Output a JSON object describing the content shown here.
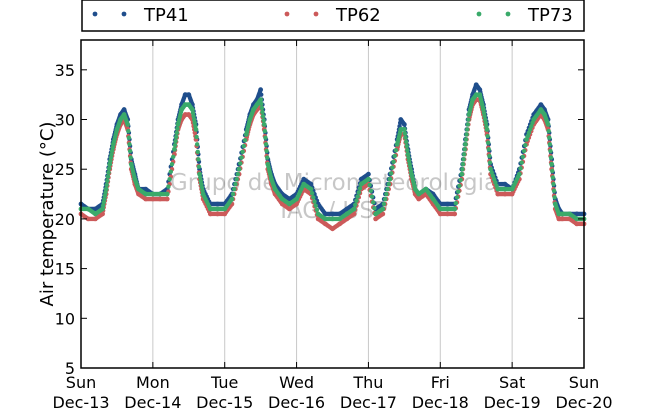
{
  "chart_data": {
    "type": "scatter",
    "title": "",
    "ylabel": "Air temperature (°C)",
    "xlabel": "",
    "ylim": [
      5,
      38
    ],
    "yticks": [
      5,
      10,
      15,
      20,
      25,
      30,
      35
    ],
    "xlim": [
      0,
      7
    ],
    "xticks": [
      {
        "day": "Sun",
        "date": "Dec-13"
      },
      {
        "day": "Mon",
        "date": "Dec-14"
      },
      {
        "day": "Tue",
        "date": "Dec-15"
      },
      {
        "day": "Wed",
        "date": "Dec-16"
      },
      {
        "day": "Thu",
        "date": "Dec-17"
      },
      {
        "day": "Fri",
        "date": "Dec-18"
      },
      {
        "day": "Sat",
        "date": "Dec-19"
      },
      {
        "day": "Sun",
        "date": "Dec-20"
      }
    ],
    "grid": "vertical",
    "legend_placement": "top",
    "watermark": [
      "Grupo de Micrometeorologia",
      "IAG / USP"
    ],
    "series": [
      {
        "name": "TP41",
        "color": "#1f4e8c",
        "x": [
          0.0,
          0.1,
          0.2,
          0.3,
          0.35,
          0.4,
          0.45,
          0.5,
          0.55,
          0.6,
          0.65,
          0.7,
          0.75,
          0.8,
          0.9,
          1.0,
          1.1,
          1.2,
          1.3,
          1.35,
          1.4,
          1.45,
          1.5,
          1.55,
          1.6,
          1.65,
          1.7,
          1.8,
          1.9,
          2.0,
          2.1,
          2.2,
          2.3,
          2.35,
          2.4,
          2.45,
          2.5,
          2.55,
          2.6,
          2.65,
          2.7,
          2.8,
          2.9,
          3.0,
          3.1,
          3.2,
          3.3,
          3.4,
          3.5,
          3.6,
          3.7,
          3.8,
          3.9,
          4.0,
          4.1,
          4.2,
          4.3,
          4.4,
          4.45,
          4.5,
          4.55,
          4.6,
          4.65,
          4.7,
          4.8,
          4.9,
          5.0,
          5.1,
          5.2,
          5.3,
          5.35,
          5.4,
          5.45,
          5.5,
          5.55,
          5.6,
          5.65,
          5.7,
          5.8,
          5.9,
          6.0,
          6.1,
          6.2,
          6.3,
          6.4,
          6.45,
          6.5,
          6.55,
          6.6,
          6.65,
          6.7,
          6.8,
          6.9,
          7.0
        ],
        "y": [
          21.5,
          21.0,
          21.0,
          21.5,
          23.5,
          26.0,
          28.0,
          29.5,
          30.5,
          31.0,
          30.0,
          26.0,
          24.5,
          23.0,
          23.0,
          22.5,
          22.5,
          23.0,
          27.5,
          30.0,
          31.5,
          32.5,
          32.5,
          31.5,
          29.5,
          25.0,
          23.0,
          21.5,
          21.5,
          21.5,
          22.5,
          25.5,
          29.0,
          30.5,
          31.5,
          32.0,
          33.0,
          30.0,
          26.0,
          24.5,
          23.5,
          22.5,
          22.0,
          22.5,
          24.0,
          23.5,
          21.5,
          20.5,
          20.5,
          20.5,
          21.0,
          21.5,
          24.0,
          24.5,
          21.0,
          21.5,
          24.5,
          28.0,
          30.0,
          29.5,
          27.0,
          25.0,
          23.0,
          22.5,
          23.0,
          22.5,
          21.5,
          21.5,
          21.5,
          25.0,
          28.0,
          31.0,
          32.5,
          33.5,
          33.0,
          31.5,
          29.5,
          25.5,
          23.5,
          23.5,
          23.0,
          25.0,
          28.5,
          30.5,
          31.5,
          31.0,
          30.0,
          26.0,
          22.0,
          21.0,
          20.5,
          20.5,
          20.5,
          20.5
        ]
      },
      {
        "name": "TP62",
        "color": "#cc5a5a",
        "x": [
          0.0,
          0.1,
          0.2,
          0.3,
          0.35,
          0.4,
          0.45,
          0.5,
          0.55,
          0.6,
          0.65,
          0.7,
          0.75,
          0.8,
          0.9,
          1.0,
          1.1,
          1.2,
          1.3,
          1.35,
          1.4,
          1.45,
          1.5,
          1.55,
          1.6,
          1.65,
          1.7,
          1.8,
          1.9,
          2.0,
          2.1,
          2.2,
          2.3,
          2.35,
          2.4,
          2.45,
          2.5,
          2.55,
          2.6,
          2.65,
          2.7,
          2.8,
          2.9,
          3.0,
          3.1,
          3.2,
          3.3,
          3.4,
          3.5,
          3.6,
          3.7,
          3.8,
          3.9,
          4.0,
          4.1,
          4.2,
          4.3,
          4.4,
          4.45,
          4.5,
          4.55,
          4.6,
          4.65,
          4.7,
          4.8,
          4.9,
          5.0,
          5.1,
          5.2,
          5.3,
          5.35,
          5.4,
          5.45,
          5.5,
          5.55,
          5.6,
          5.65,
          5.7,
          5.8,
          5.9,
          6.0,
          6.1,
          6.2,
          6.3,
          6.4,
          6.45,
          6.5,
          6.55,
          6.6,
          6.65,
          6.7,
          6.8,
          6.9,
          7.0
        ],
        "y": [
          20.5,
          20.0,
          20.0,
          20.5,
          22.5,
          25.0,
          27.0,
          28.5,
          29.5,
          30.0,
          29.0,
          25.0,
          23.5,
          22.5,
          22.0,
          22.0,
          22.0,
          22.0,
          26.5,
          29.0,
          30.0,
          30.5,
          30.5,
          30.0,
          28.0,
          24.0,
          22.0,
          20.5,
          20.5,
          20.5,
          21.5,
          24.5,
          28.0,
          29.5,
          30.5,
          31.0,
          31.5,
          29.0,
          25.0,
          23.5,
          22.5,
          21.5,
          21.0,
          21.5,
          23.0,
          22.5,
          20.0,
          19.5,
          19.0,
          19.5,
          20.0,
          20.5,
          23.0,
          23.5,
          20.0,
          20.5,
          23.5,
          27.0,
          28.5,
          28.5,
          26.0,
          24.0,
          22.5,
          22.0,
          22.5,
          21.5,
          20.5,
          20.5,
          20.5,
          24.0,
          27.0,
          30.0,
          31.5,
          32.0,
          32.0,
          30.5,
          28.5,
          24.5,
          22.5,
          22.5,
          22.5,
          24.0,
          27.5,
          29.5,
          30.5,
          30.0,
          29.0,
          25.0,
          21.0,
          20.0,
          20.0,
          20.0,
          19.5,
          19.5
        ]
      },
      {
        "name": "TP73",
        "color": "#3aaa6a",
        "x": [
          0.0,
          0.1,
          0.2,
          0.3,
          0.35,
          0.4,
          0.45,
          0.5,
          0.55,
          0.6,
          0.65,
          0.7,
          0.75,
          0.8,
          0.9,
          1.0,
          1.1,
          1.2,
          1.3,
          1.35,
          1.4,
          1.45,
          1.5,
          1.55,
          1.6,
          1.65,
          1.7,
          1.8,
          1.9,
          2.0,
          2.1,
          2.2,
          2.3,
          2.35,
          2.4,
          2.45,
          2.5,
          2.55,
          2.6,
          2.65,
          2.7,
          2.8,
          2.9,
          3.0,
          3.1,
          3.2,
          3.3,
          3.4,
          3.5,
          3.6,
          3.7,
          3.8,
          3.9,
          4.0,
          4.1,
          4.2,
          4.3,
          4.4,
          4.45,
          4.5,
          4.55,
          4.6,
          4.65,
          4.7,
          4.8,
          4.9,
          5.0,
          5.1,
          5.2,
          5.3,
          5.35,
          5.4,
          5.45,
          5.5,
          5.55,
          5.6,
          5.65,
          5.7,
          5.8,
          5.9,
          6.0,
          6.1,
          6.2,
          6.3,
          6.4,
          6.45,
          6.5,
          6.55,
          6.6,
          6.65,
          6.7,
          6.8,
          6.9,
          7.0
        ],
        "y": [
          21.0,
          21.0,
          20.5,
          21.0,
          23.0,
          25.5,
          27.5,
          29.0,
          30.0,
          30.5,
          29.5,
          25.5,
          24.0,
          23.0,
          22.5,
          22.5,
          22.5,
          22.5,
          27.0,
          29.5,
          31.0,
          31.5,
          31.5,
          31.0,
          29.0,
          24.5,
          22.5,
          21.0,
          21.0,
          21.0,
          22.0,
          25.0,
          28.5,
          30.0,
          31.0,
          31.5,
          32.0,
          29.5,
          25.5,
          24.0,
          23.0,
          22.0,
          21.5,
          22.0,
          23.5,
          23.0,
          20.5,
          20.0,
          20.0,
          20.0,
          20.5,
          21.0,
          23.5,
          24.0,
          20.5,
          21.0,
          24.0,
          27.5,
          29.0,
          29.0,
          26.5,
          24.5,
          23.0,
          22.5,
          23.0,
          22.0,
          21.0,
          21.0,
          21.0,
          24.5,
          27.5,
          30.5,
          32.0,
          32.5,
          32.5,
          31.0,
          29.0,
          25.0,
          23.0,
          23.0,
          23.0,
          24.5,
          28.0,
          30.0,
          31.0,
          30.5,
          29.5,
          25.5,
          21.5,
          20.5,
          20.5,
          20.5,
          20.0,
          20.0
        ]
      }
    ]
  }
}
